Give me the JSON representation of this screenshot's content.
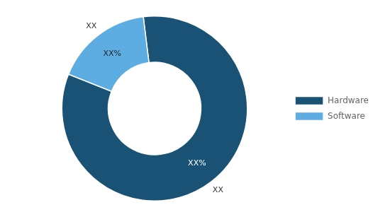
{
  "chart_data": {
    "type": "doughnut",
    "categories": [
      "Hardware",
      "Software"
    ],
    "values": [
      83,
      17
    ],
    "colors": [
      "#1a5276",
      "#5dade2"
    ],
    "data_labels": true,
    "value_labels": [
      "XX%",
      "XX%"
    ],
    "outer_labels": [
      "XX",
      "XX"
    ],
    "legend": "right"
  }
}
